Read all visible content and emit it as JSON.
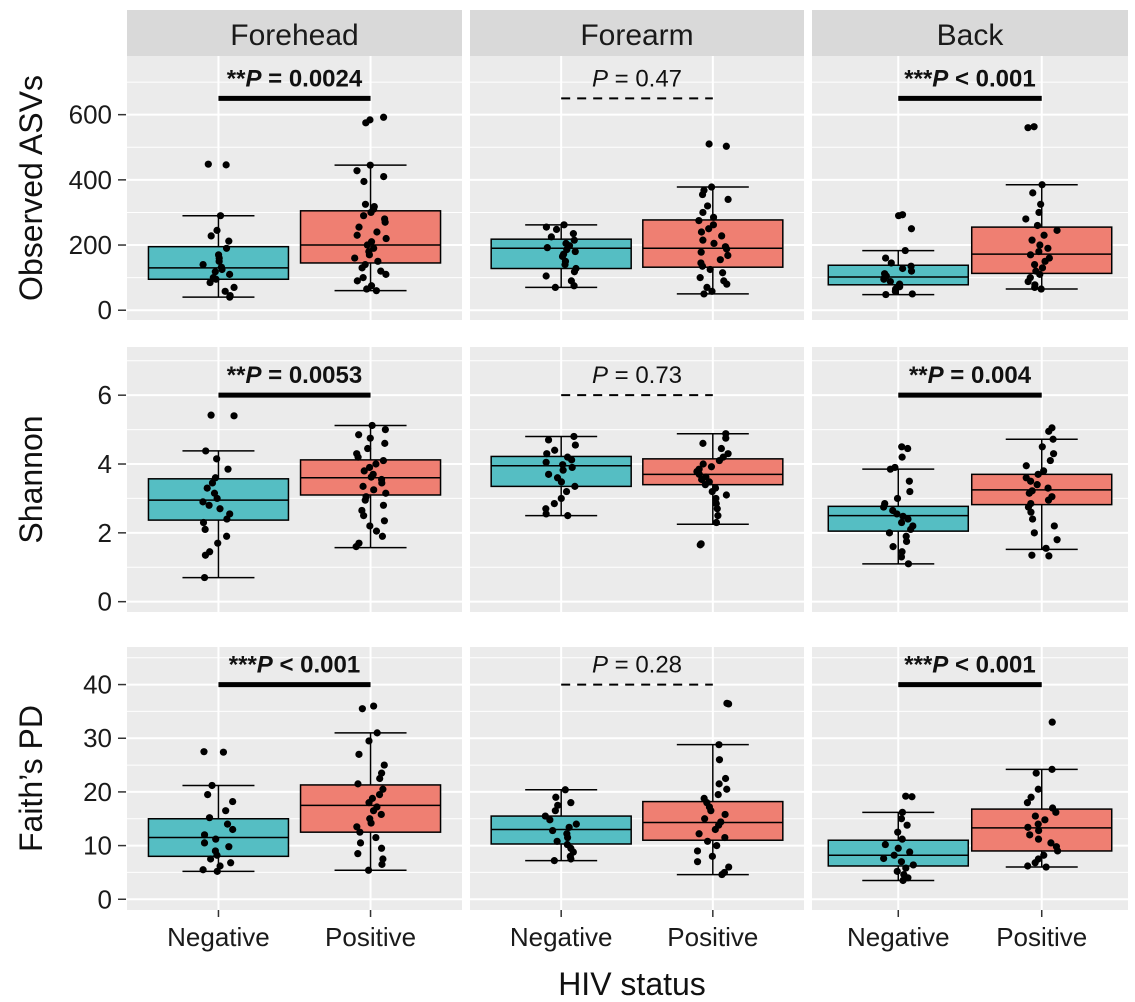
{
  "chart_data": {
    "type": "box",
    "xlabel": "HIV status",
    "facet_columns": [
      "Forehead",
      "Forearm",
      "Back"
    ],
    "facet_rows": [
      "Observed ASVs",
      "Shannon",
      "Faith’s PD"
    ],
    "categories": [
      "Negative",
      "Positive"
    ],
    "colors": {
      "Negative": "#55bec3",
      "Positive": "#ef7f72"
    },
    "rows": [
      {
        "ylabel": "Observed ASVs",
        "ylim": [
          -30,
          780
        ],
        "yticks": [
          0,
          200,
          400,
          600
        ],
        "ytick_labels": [
          "0",
          "200",
          "400",
          "600"
        ],
        "panels": [
          {
            "column": "Forehead",
            "annotation": {
              "stars": "**",
              "p_label": "P",
              "rest": " = 0.0024",
              "y": 650,
              "significant": true
            },
            "boxes": [
              {
                "category": "Negative",
                "min": 40,
                "q1": 95,
                "median": 130,
                "q3": 195,
                "max": 290,
                "points": [
                  448,
                  446,
                  290,
                  245,
                  228,
                  212,
                  190,
                  170,
                  160,
                  150,
                  140,
                  132,
                  125,
                  118,
                  110,
                  100,
                  95,
                  85,
                  70,
                  58,
                  45,
                  40
                ]
              },
              {
                "category": "Positive",
                "min": 60,
                "q1": 145,
                "median": 200,
                "q3": 305,
                "max": 445,
                "points": [
                  592,
                  584,
                  575,
                  445,
                  428,
                  410,
                  395,
                  325,
                  318,
                  310,
                  300,
                  290,
                  280,
                  270,
                  255,
                  240,
                  230,
                  220,
                  210,
                  200,
                  190,
                  180,
                  170,
                  160,
                  150,
                  140,
                  130,
                  120,
                  110,
                  100,
                  90,
                  75,
                  65,
                  60
                ]
              }
            ]
          },
          {
            "column": "Forearm",
            "annotation": {
              "stars": "",
              "p_label": "P",
              "rest": " = 0.47",
              "y": 650,
              "significant": false
            },
            "boxes": [
              {
                "category": "Negative",
                "min": 70,
                "q1": 128,
                "median": 190,
                "q3": 218,
                "max": 262,
                "points": [
                  262,
                  255,
                  248,
                  235,
                  225,
                  215,
                  205,
                  198,
                  192,
                  186,
                  180,
                  172,
                  165,
                  150,
                  140,
                  128,
                  118,
                  105,
                  90,
                  75,
                  70
                ]
              },
              {
                "category": "Positive",
                "min": 50,
                "q1": 132,
                "median": 190,
                "q3": 277,
                "max": 378,
                "points": [
                  510,
                  503,
                  378,
                  368,
                  355,
                  340,
                  320,
                  300,
                  285,
                  275,
                  262,
                  250,
                  240,
                  228,
                  215,
                  205,
                  195,
                  188,
                  178,
                  168,
                  155,
                  145,
                  135,
                  125,
                  115,
                  100,
                  90,
                  80,
                  70,
                  58,
                  50
                ]
              }
            ]
          },
          {
            "column": "Back",
            "annotation": {
              "stars": "***",
              "p_label": "P",
              "rest": " < 0.001",
              "y": 650,
              "significant": true
            },
            "boxes": [
              {
                "category": "Negative",
                "min": 48,
                "q1": 78,
                "median": 102,
                "q3": 138,
                "max": 183,
                "points": [
                  293,
                  290,
                  250,
                  183,
                  160,
                  145,
                  135,
                  128,
                  120,
                  112,
                  105,
                  100,
                  95,
                  88,
                  80,
                  72,
                  65,
                  58,
                  50,
                  48
                ]
              },
              {
                "category": "Positive",
                "min": 65,
                "q1": 113,
                "median": 172,
                "q3": 255,
                "max": 385,
                "points": [
                  563,
                  560,
                  385,
                  360,
                  325,
                  300,
                  280,
                  260,
                  245,
                  230,
                  215,
                  200,
                  190,
                  180,
                  170,
                  160,
                  150,
                  140,
                  130,
                  120,
                  110,
                  100,
                  88,
                  78,
                  70,
                  65
                ]
              }
            ]
          }
        ]
      },
      {
        "ylabel": "Shannon",
        "ylim": [
          -0.3,
          7.4
        ],
        "yticks": [
          0,
          2,
          4,
          6
        ],
        "ytick_labels": [
          "0",
          "2",
          "4",
          "6"
        ],
        "panels": [
          {
            "column": "Forehead",
            "annotation": {
              "stars": "**",
              "p_label": "P",
              "rest": " = 0.0053",
              "y": 6.0,
              "significant": true
            },
            "boxes": [
              {
                "category": "Negative",
                "min": 0.7,
                "q1": 2.37,
                "median": 2.95,
                "q3": 3.57,
                "max": 4.38,
                "points": [
                  5.42,
                  5.4,
                  4.38,
                  4.15,
                  3.85,
                  3.6,
                  3.45,
                  3.3,
                  3.15,
                  3.0,
                  2.9,
                  2.8,
                  2.7,
                  2.55,
                  2.4,
                  2.3,
                  2.1,
                  1.9,
                  1.7,
                  1.45,
                  1.35,
                  0.7
                ]
              },
              {
                "category": "Positive",
                "min": 1.57,
                "q1": 3.1,
                "median": 3.6,
                "q3": 4.12,
                "max": 5.12,
                "points": [
                  5.12,
                  5.0,
                  4.85,
                  4.75,
                  4.6,
                  4.45,
                  4.3,
                  4.2,
                  4.1,
                  4.0,
                  3.9,
                  3.8,
                  3.7,
                  3.62,
                  3.55,
                  3.45,
                  3.35,
                  3.25,
                  3.15,
                  3.05,
                  2.95,
                  2.8,
                  2.65,
                  2.5,
                  2.35,
                  2.2,
                  2.05,
                  1.9,
                  1.7,
                  1.6
                ]
              }
            ]
          },
          {
            "column": "Forearm",
            "annotation": {
              "stars": "",
              "p_label": "P",
              "rest": " = 0.73",
              "y": 6.0,
              "significant": false
            },
            "boxes": [
              {
                "category": "Negative",
                "min": 2.5,
                "q1": 3.35,
                "median": 3.95,
                "q3": 4.22,
                "max": 4.8,
                "points": [
                  4.8,
                  4.7,
                  4.55,
                  4.4,
                  4.3,
                  4.2,
                  4.12,
                  4.05,
                  3.98,
                  3.9,
                  3.82,
                  3.7,
                  3.6,
                  3.48,
                  3.35,
                  3.2,
                  3.0,
                  2.85,
                  2.7,
                  2.55,
                  2.5
                ]
              },
              {
                "category": "Positive",
                "min": 2.25,
                "q1": 3.4,
                "median": 3.7,
                "q3": 4.15,
                "max": 4.88,
                "points": [
                  4.88,
                  4.75,
                  4.6,
                  4.45,
                  4.3,
                  4.2,
                  4.1,
                  4.0,
                  3.92,
                  3.85,
                  3.78,
                  3.7,
                  3.62,
                  3.55,
                  3.48,
                  3.4,
                  3.3,
                  3.2,
                  3.1,
                  3.0,
                  2.85,
                  2.7,
                  2.5,
                  2.3,
                  1.68,
                  1.65
                ]
              }
            ]
          },
          {
            "column": "Back",
            "annotation": {
              "stars": "**",
              "p_label": "P",
              "rest": " = 0.004",
              "y": 6.0,
              "significant": true
            },
            "boxes": [
              {
                "category": "Negative",
                "min": 1.1,
                "q1": 2.05,
                "median": 2.5,
                "q3": 2.77,
                "max": 3.85,
                "points": [
                  4.5,
                  4.45,
                  4.2,
                  3.9,
                  3.85,
                  3.5,
                  3.2,
                  3.0,
                  2.85,
                  2.75,
                  2.65,
                  2.55,
                  2.48,
                  2.4,
                  2.3,
                  2.2,
                  2.1,
                  2.0,
                  1.9,
                  1.75,
                  1.6,
                  1.45,
                  1.3,
                  1.1
                ]
              },
              {
                "category": "Positive",
                "min": 1.52,
                "q1": 2.82,
                "median": 3.25,
                "q3": 3.7,
                "max": 4.72,
                "points": [
                  5.05,
                  4.95,
                  4.72,
                  4.5,
                  4.3,
                  4.1,
                  3.95,
                  3.8,
                  3.7,
                  3.6,
                  3.5,
                  3.4,
                  3.3,
                  3.22,
                  3.15,
                  3.05,
                  2.95,
                  2.85,
                  2.75,
                  2.6,
                  2.4,
                  2.2,
                  2.0,
                  1.8,
                  1.55,
                  1.35,
                  1.33
                ]
              }
            ]
          }
        ]
      },
      {
        "ylabel": "Faith’s PD",
        "ylim": [
          -2,
          47
        ],
        "yticks": [
          0,
          10,
          20,
          30,
          40
        ],
        "ytick_labels": [
          "0",
          "10",
          "20",
          "30",
          "40"
        ],
        "panels": [
          {
            "column": "Forehead",
            "annotation": {
              "stars": "***",
              "p_label": "P",
              "rest": " < 0.001",
              "y": 40,
              "significant": true
            },
            "boxes": [
              {
                "category": "Negative",
                "min": 5.2,
                "q1": 8.0,
                "median": 11.5,
                "q3": 15.0,
                "max": 21.2,
                "points": [
                  27.5,
                  27.4,
                  21.2,
                  19.5,
                  18.2,
                  16.5,
                  15.2,
                  14.0,
                  13.0,
                  12.0,
                  11.2,
                  10.5,
                  9.8,
                  9.0,
                  8.2,
                  7.5,
                  6.8,
                  6.2,
                  5.5,
                  5.2
                ]
              },
              {
                "category": "Positive",
                "min": 5.4,
                "q1": 12.5,
                "median": 17.5,
                "q3": 21.3,
                "max": 31.0,
                "points": [
                  36.0,
                  35.5,
                  31.0,
                  29.5,
                  27.0,
                  25.0,
                  23.5,
                  22.5,
                  21.5,
                  20.5,
                  19.5,
                  18.8,
                  18.0,
                  17.2,
                  16.5,
                  15.8,
                  15.0,
                  14.2,
                  13.5,
                  12.5,
                  11.5,
                  10.5,
                  9.5,
                  8.5,
                  7.5,
                  6.5,
                  5.4
                ]
              }
            ]
          },
          {
            "column": "Forearm",
            "annotation": {
              "stars": "",
              "p_label": "P",
              "rest": " = 0.28",
              "y": 40,
              "significant": false
            },
            "boxes": [
              {
                "category": "Negative",
                "min": 7.2,
                "q1": 10.3,
                "median": 13.0,
                "q3": 15.5,
                "max": 20.4,
                "points": [
                  20.4,
                  19.0,
                  18.0,
                  17.5,
                  16.5,
                  15.5,
                  14.8,
                  14.0,
                  13.4,
                  12.8,
                  12.2,
                  11.5,
                  10.8,
                  10.2,
                  9.5,
                  8.8,
                  8.0,
                  7.5,
                  7.2
                ]
              },
              {
                "category": "Positive",
                "min": 4.6,
                "q1": 11.0,
                "median": 14.3,
                "q3": 18.2,
                "max": 28.8,
                "points": [
                  36.5,
                  36.4,
                  28.8,
                  26.0,
                  22.5,
                  21.5,
                  20.5,
                  19.5,
                  18.8,
                  18.0,
                  17.2,
                  16.5,
                  15.8,
                  15.0,
                  14.4,
                  13.8,
                  13.0,
                  12.2,
                  11.5,
                  10.8,
                  10.0,
                  9.0,
                  8.0,
                  7.0,
                  6.0,
                  5.0,
                  4.6
                ]
              }
            ]
          },
          {
            "column": "Back",
            "annotation": {
              "stars": "***",
              "p_label": "P",
              "rest": " < 0.001",
              "y": 40,
              "significant": true
            },
            "boxes": [
              {
                "category": "Negative",
                "min": 3.5,
                "q1": 6.2,
                "median": 8.2,
                "q3": 11.0,
                "max": 16.2,
                "points": [
                  19.2,
                  19.1,
                  16.2,
                  15.0,
                  13.8,
                  12.5,
                  11.2,
                  10.2,
                  9.5,
                  8.8,
                  8.2,
                  7.6,
                  7.0,
                  6.4,
                  5.8,
                  5.2,
                  4.6,
                  4.0,
                  3.5
                ]
              },
              {
                "category": "Positive",
                "min": 6.0,
                "q1": 9.0,
                "median": 13.3,
                "q3": 16.8,
                "max": 24.2,
                "points": [
                  33.0,
                  24.2,
                  23.5,
                  20.5,
                  19.0,
                  18.0,
                  17.0,
                  16.2,
                  15.5,
                  14.8,
                  14.0,
                  13.4,
                  12.8,
                  12.0,
                  11.2,
                  10.5,
                  9.8,
                  9.0,
                  8.2,
                  7.5,
                  6.8,
                  6.2,
                  6.0
                ]
              }
            ]
          }
        ]
      }
    ]
  }
}
